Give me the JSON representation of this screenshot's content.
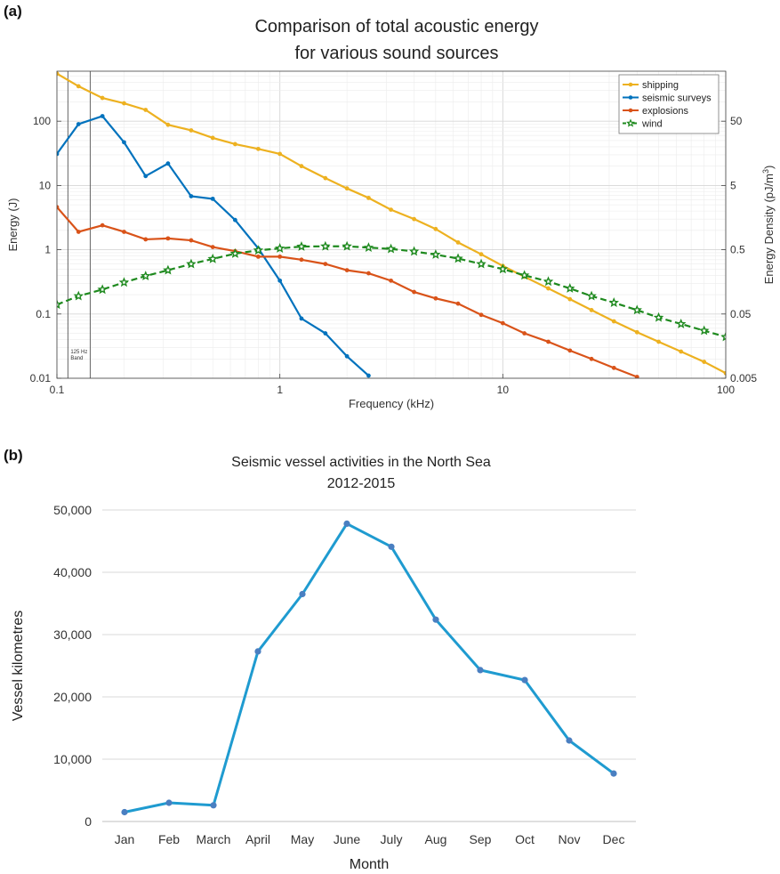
{
  "panel_a": {
    "label": "(a)",
    "title_line1": "Comparison of total acoustic energy",
    "title_line2": "for various sound sources",
    "band_note_line1": "125 Hz",
    "band_note_line2": "Band"
  },
  "panel_b": {
    "label": "(b)",
    "title_line1": "Seismic vessel activities in the North Sea",
    "title_line2": "2012-2015"
  },
  "chart_data": [
    {
      "type": "line",
      "title": "Comparison of total acoustic energy for various sound sources",
      "xlabel": "Frequency (kHz)",
      "ylabel": "Energy (J)",
      "y2label": "Energy Density (pJ/m3)",
      "xscale": "log",
      "yscale": "log",
      "xlim": [
        0.1,
        100
      ],
      "ylim": [
        0.01,
        600
      ],
      "y2lim": [
        0.005,
        300
      ],
      "xticks": [
        0.1,
        1,
        10,
        100
      ],
      "xtick_labels": [
        "0.1",
        "1",
        "10",
        "100"
      ],
      "yticks": [
        0.01,
        0.1,
        1,
        10,
        100
      ],
      "ytick_labels": [
        "0.01",
        "0.1",
        "1",
        "10",
        "100"
      ],
      "y2ticks": [
        0.005,
        0.05,
        0.5,
        5,
        50
      ],
      "y2tick_labels": [
        "0.005",
        "0.05",
        "0.5",
        "5",
        "50"
      ],
      "grid": true,
      "legend_position": "top-right",
      "band_lines": [
        0.112,
        0.141
      ],
      "series": [
        {
          "name": "shipping",
          "color": "#EDB120",
          "style": "solid",
          "marker": "dot",
          "x": [
            0.1,
            0.125,
            0.16,
            0.2,
            0.25,
            0.315,
            0.4,
            0.5,
            0.63,
            0.8,
            1,
            1.25,
            1.6,
            2,
            2.5,
            3.15,
            4,
            5,
            6.3,
            8,
            10,
            12.5,
            16,
            20,
            25,
            31.5,
            40,
            50,
            63,
            80,
            100
          ],
          "y": [
            550,
            350,
            230,
            190,
            150,
            88,
            72,
            55,
            44,
            37,
            31,
            20,
            13,
            9,
            6.4,
            4.2,
            3,
            2.1,
            1.3,
            0.85,
            0.56,
            0.38,
            0.25,
            0.17,
            0.115,
            0.077,
            0.052,
            0.037,
            0.026,
            0.018,
            0.012
          ]
        },
        {
          "name": "seismic surveys",
          "color": "#0072BD",
          "style": "solid",
          "marker": "dot",
          "x": [
            0.1,
            0.125,
            0.16,
            0.2,
            0.25,
            0.315,
            0.4,
            0.5,
            0.63,
            0.8,
            1,
            1.25,
            1.6,
            2,
            2.5
          ],
          "y": [
            31,
            90,
            120,
            47,
            14,
            22,
            6.8,
            6.2,
            2.9,
            1.05,
            0.33,
            0.085,
            0.05,
            0.022,
            0.011
          ]
        },
        {
          "name": "explosions",
          "color": "#D95319",
          "style": "solid",
          "marker": "dot",
          "x": [
            0.1,
            0.125,
            0.16,
            0.2,
            0.25,
            0.315,
            0.4,
            0.5,
            0.63,
            0.8,
            1,
            1.25,
            1.6,
            2,
            2.5,
            3.15,
            4,
            5,
            6.3,
            8,
            10,
            12.5,
            16,
            20,
            25,
            31.5,
            40
          ],
          "y": [
            4.6,
            1.9,
            2.4,
            1.9,
            1.45,
            1.5,
            1.4,
            1.1,
            0.95,
            0.78,
            0.78,
            0.7,
            0.6,
            0.48,
            0.43,
            0.33,
            0.22,
            0.175,
            0.145,
            0.097,
            0.072,
            0.05,
            0.037,
            0.027,
            0.02,
            0.0145,
            0.0105
          ]
        },
        {
          "name": "wind",
          "color": "#1F8A1F",
          "style": "dashed",
          "marker": "star",
          "x": [
            0.1,
            0.125,
            0.16,
            0.2,
            0.25,
            0.315,
            0.4,
            0.5,
            0.63,
            0.8,
            1,
            1.25,
            1.6,
            2,
            2.5,
            3.15,
            4,
            5,
            6.3,
            8,
            10,
            12.5,
            16,
            20,
            25,
            31.5,
            40,
            50,
            63,
            80,
            100
          ],
          "y": [
            0.14,
            0.19,
            0.24,
            0.31,
            0.39,
            0.48,
            0.6,
            0.72,
            0.87,
            0.98,
            1.05,
            1.12,
            1.13,
            1.13,
            1.08,
            1.03,
            0.94,
            0.84,
            0.73,
            0.6,
            0.5,
            0.4,
            0.32,
            0.25,
            0.19,
            0.15,
            0.115,
            0.088,
            0.07,
            0.055,
            0.044
          ]
        }
      ]
    },
    {
      "type": "line",
      "title": "Seismic vessel activities in the North Sea 2012-2015",
      "xlabel": "Month",
      "ylabel": "Vessel kilometres",
      "ylim": [
        0,
        50000
      ],
      "yticks": [
        0,
        10000,
        20000,
        30000,
        40000,
        50000
      ],
      "ytick_labels": [
        "0",
        "10,000",
        "20,000",
        "30,000",
        "40,000",
        "50,000"
      ],
      "grid": true,
      "color": "#1F9BD0",
      "categories": [
        "Jan",
        "Feb",
        "March",
        "April",
        "May",
        "June",
        "July",
        "Aug",
        "Sep",
        "Oct",
        "Nov",
        "Dec"
      ],
      "values": [
        1500,
        3000,
        2600,
        27300,
        36500,
        47800,
        44100,
        32400,
        24300,
        22700,
        13000,
        7700
      ]
    }
  ]
}
